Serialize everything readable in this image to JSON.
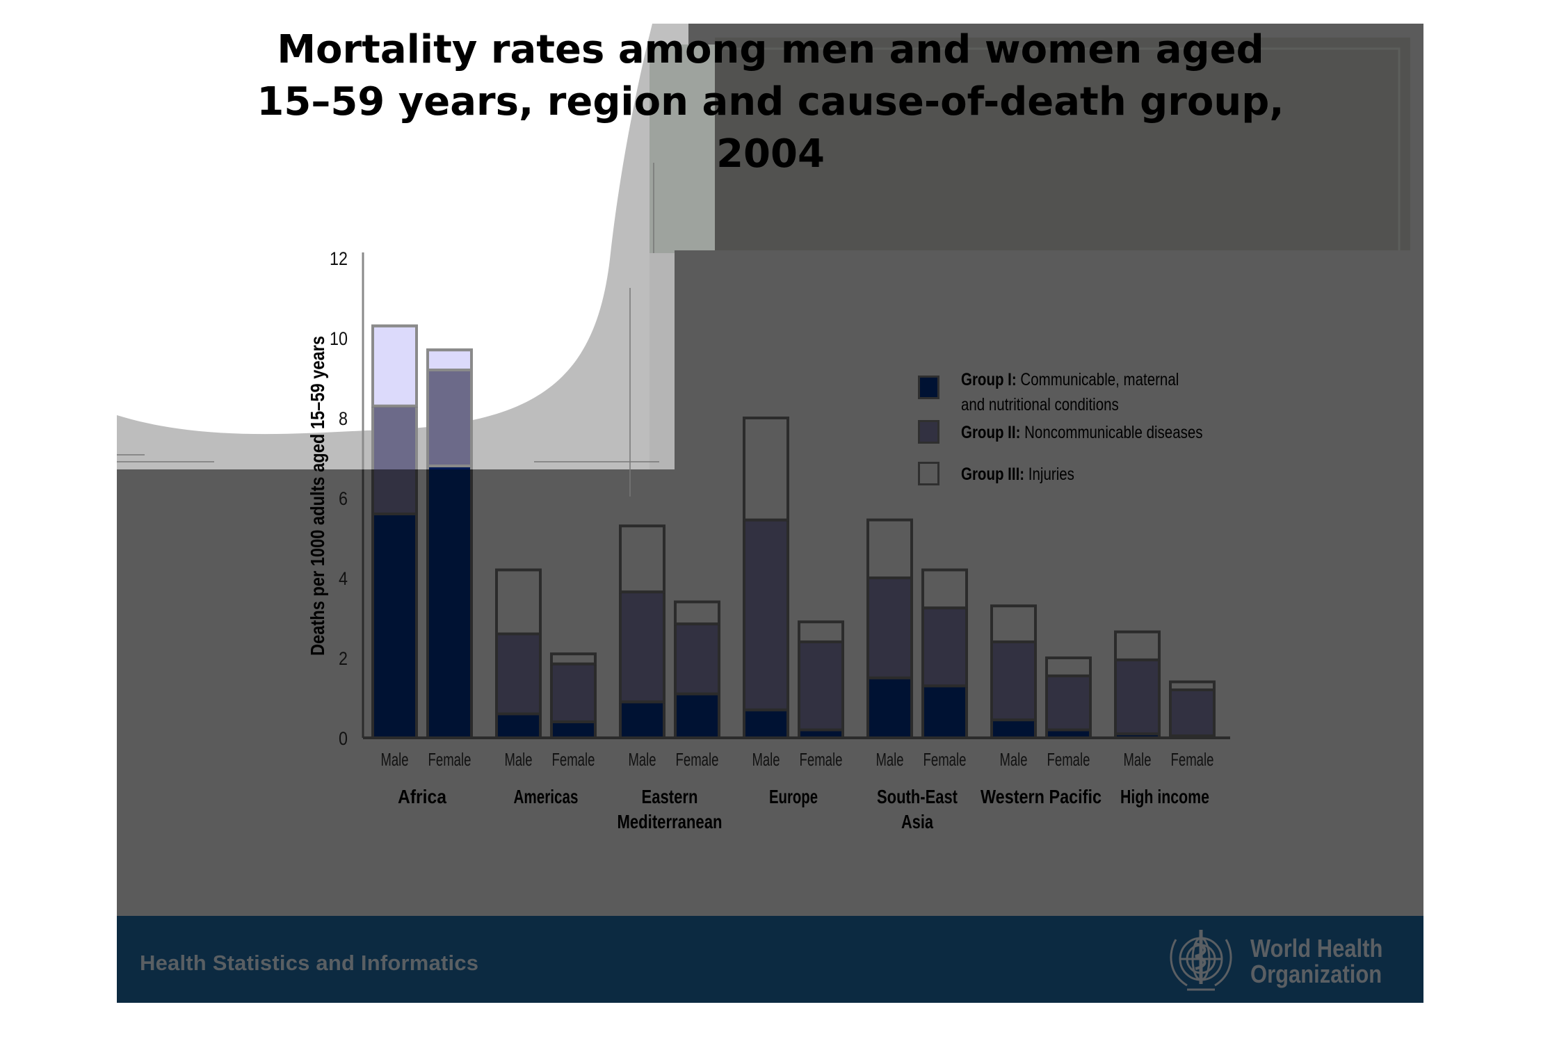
{
  "slide": {
    "title_lines": [
      "Mortality rates among men and women aged",
      "15–59 years, region and cause-of-death group,",
      "2004"
    ],
    "footer_text": "Health Statistics and Informatics",
    "organization_line1": "World Health",
    "organization_line2": "Organization",
    "logo": "who-emblem"
  },
  "colors": {
    "group1": "#001233",
    "group2": "#323141",
    "group3": "#5b5b5b",
    "background": "#5b5b5b",
    "footer": "#0c2a41"
  },
  "chart_data": {
    "type": "bar",
    "stacked": true,
    "title": "Mortality rates among men and women aged 15–59 years, region and cause-of-death group, 2004",
    "ylabel": "Deaths per 1000 adults aged 15–59 years",
    "xlabel": "",
    "ylim": [
      0,
      12
    ],
    "yticks": [
      "0",
      "2",
      "4",
      "6",
      "8",
      "10",
      "12"
    ],
    "grid": false,
    "legend_position": "right",
    "regions": [
      {
        "name_lines": [
          "Africa"
        ]
      },
      {
        "name_lines": [
          "Americas"
        ]
      },
      {
        "name_lines": [
          "Eastern",
          "Mediterranean"
        ]
      },
      {
        "name_lines": [
          "Europe"
        ]
      },
      {
        "name_lines": [
          "South-East",
          "Asia"
        ]
      },
      {
        "name_lines": [
          "Western Pacific"
        ]
      },
      {
        "name_lines": [
          "High income"
        ]
      }
    ],
    "sexes": [
      "Male",
      "Female"
    ],
    "categories": [
      "Africa Male",
      "Africa Female",
      "Americas Male",
      "Americas Female",
      "Eastern Mediterranean Male",
      "Eastern Mediterranean Female",
      "Europe Male",
      "Europe Female",
      "South-East Asia Male",
      "South-East Asia Female",
      "Western Pacific Male",
      "Western Pacific Female",
      "High income Male",
      "High income Female"
    ],
    "series": [
      {
        "name": "Group I",
        "legend_bold": "Group I:",
        "legend_text": "Communicable, maternal",
        "legend_text2": "and nutritional conditions",
        "values": [
          5.6,
          6.8,
          0.6,
          0.4,
          0.9,
          1.1,
          0.7,
          0.2,
          1.5,
          1.3,
          0.45,
          0.2,
          0.1,
          0.05
        ]
      },
      {
        "name": "Group II",
        "legend_bold": "Group II:",
        "legend_text": "Noncommunicable diseases",
        "values": [
          2.7,
          2.4,
          2.0,
          1.45,
          2.75,
          1.75,
          4.75,
          2.2,
          2.5,
          1.95,
          1.95,
          1.35,
          1.85,
          1.15
        ]
      },
      {
        "name": "Group III",
        "legend_bold": "Group III:",
        "legend_text": "Injuries",
        "values": [
          2.0,
          0.5,
          1.6,
          0.25,
          1.65,
          0.55,
          2.55,
          0.5,
          1.45,
          0.95,
          0.9,
          0.45,
          0.7,
          0.2
        ]
      }
    ]
  }
}
